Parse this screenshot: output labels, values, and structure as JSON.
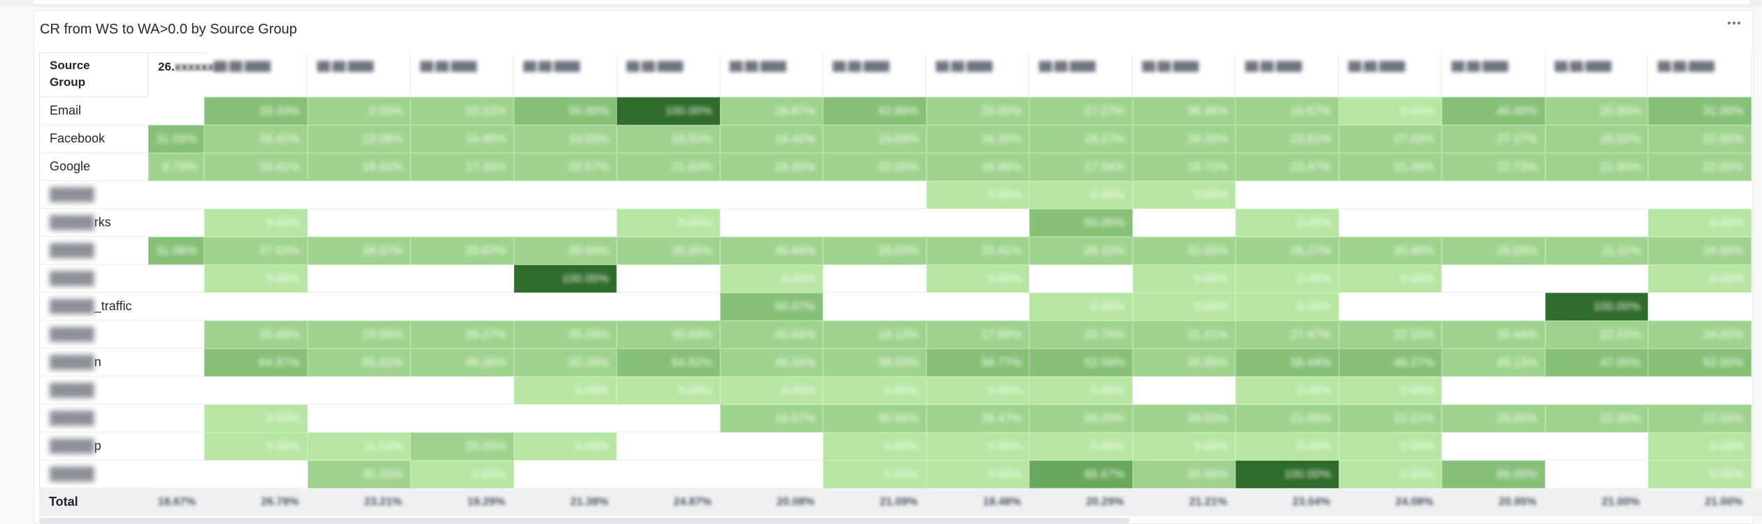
{
  "panel": {
    "title": "CR from WS to WA>0.0 by Source Group",
    "menu_icon": "more-horizontal-icon"
  },
  "table": {
    "row_header": "Source\nGroup",
    "first_date_label": "26.",
    "total_label": "Total",
    "rows": [
      {
        "label": "Email",
        "blur": false
      },
      {
        "label": "Facebook",
        "blur": false
      },
      {
        "label": "Google",
        "blur": false
      },
      {
        "label": "",
        "blur": true
      },
      {
        "label": "rks",
        "blur": true
      },
      {
        "label": "",
        "blur": true
      },
      {
        "label": "",
        "blur": true
      },
      {
        "label": "_traffic",
        "blur": true
      },
      {
        "label": "",
        "blur": true
      },
      {
        "label": "n",
        "blur": true
      },
      {
        "label": "",
        "blur": true
      },
      {
        "label": "",
        "blur": true
      },
      {
        "label": "p",
        "blur": true
      },
      {
        "label": "",
        "blur": true
      }
    ],
    "columns": 16,
    "levels": [
      [
        0,
        3,
        2,
        2,
        3,
        5,
        2,
        3,
        2,
        2,
        2,
        2,
        1,
        3,
        2,
        3
      ],
      [
        3,
        2,
        2,
        2,
        2,
        2,
        2,
        2,
        2,
        2,
        2,
        2,
        2,
        2,
        2,
        2
      ],
      [
        2,
        2,
        2,
        2,
        2,
        2,
        2,
        2,
        2,
        2,
        2,
        2,
        2,
        2,
        2,
        2
      ],
      [
        0,
        0,
        0,
        0,
        0,
        0,
        0,
        0,
        1,
        1,
        1,
        0,
        0,
        0,
        0,
        0
      ],
      [
        0,
        1,
        0,
        0,
        0,
        1,
        0,
        0,
        0,
        3,
        0,
        1,
        0,
        0,
        0,
        1
      ],
      [
        3,
        2,
        2,
        2,
        2,
        2,
        2,
        2,
        2,
        2,
        2,
        2,
        2,
        2,
        2,
        2
      ],
      [
        0,
        1,
        0,
        0,
        5,
        0,
        1,
        0,
        1,
        0,
        1,
        1,
        1,
        0,
        0,
        1
      ],
      [
        0,
        0,
        0,
        0,
        0,
        0,
        3,
        0,
        0,
        1,
        1,
        1,
        0,
        0,
        5,
        0
      ],
      [
        0,
        2,
        2,
        2,
        2,
        2,
        2,
        2,
        2,
        2,
        2,
        2,
        2,
        2,
        2,
        2
      ],
      [
        0,
        3,
        2,
        2,
        2,
        3,
        2,
        2,
        3,
        3,
        2,
        3,
        3,
        2,
        3,
        3
      ],
      [
        0,
        0,
        0,
        0,
        1,
        1,
        1,
        1,
        1,
        1,
        0,
        1,
        1,
        0,
        0,
        0
      ],
      [
        0,
        1,
        0,
        0,
        0,
        0,
        2,
        2,
        2,
        2,
        2,
        2,
        2,
        2,
        2,
        2
      ],
      [
        0,
        1,
        1,
        2,
        1,
        0,
        0,
        1,
        1,
        1,
        1,
        1,
        1,
        0,
        0,
        1
      ],
      [
        0,
        0,
        2,
        1,
        0,
        0,
        0,
        1,
        1,
        4,
        2,
        5,
        1,
        3,
        0,
        1
      ]
    ],
    "values": [
      [
        "",
        "33.33%",
        "0.00%",
        "22.22%",
        "50.00%",
        "100.00%",
        "26.67%",
        "42.86%",
        "25.00%",
        "27.27%",
        "36.36%",
        "16.67%",
        "0.00%",
        "40.00%",
        "25.00%",
        "31.00%"
      ],
      [
        "31.03%",
        "26.42%",
        "23.08%",
        "18.46%",
        "19.59%",
        "18.52%",
        "19.42%",
        "19.69%",
        "16.30%",
        "18.27%",
        "18.33%",
        "23.81%",
        "27.03%",
        "27.17%",
        "28.02%",
        "22.00%"
      ],
      [
        "8.78%",
        "20.81%",
        "18.41%",
        "17.10%",
        "20.57%",
        "21.83%",
        "19.20%",
        "20.00%",
        "16.99%",
        "17.04%",
        "19.72%",
        "23.47%",
        "21.09%",
        "22.73%",
        "21.00%",
        "22.00%"
      ],
      [
        "",
        "",
        "",
        "",
        "",
        "",
        "",
        "",
        "0.00%",
        "0.00%",
        "0.00%",
        "",
        "",
        "",
        "",
        ""
      ],
      [
        "",
        "0.00%",
        "",
        "",
        "",
        "0.00%",
        "",
        "",
        "",
        "50.00%",
        "",
        "0.00%",
        "",
        "",
        "",
        "0.00%"
      ],
      [
        "31.06%",
        "27.63%",
        "29.37%",
        "25.67%",
        "30.04%",
        "30.05%",
        "40.84%",
        "29.03%",
        "25.41%",
        "28.15%",
        "32.05%",
        "26.27%",
        "30.46%",
        "26.03%",
        "11.11%",
        "24.00%"
      ],
      [
        "",
        "0.00%",
        "",
        "",
        "100.00%",
        "",
        "0.00%",
        "",
        "0.00%",
        "",
        "0.00%",
        "0.00%",
        "0.00%",
        "",
        "",
        "0.00%"
      ],
      [
        "",
        "",
        "",
        "",
        "",
        "",
        "66.67%",
        "",
        "",
        "0.00%",
        "0.00%",
        "0.00%",
        "",
        "",
        "100.00%",
        ""
      ],
      [
        "",
        "25.49%",
        "23.00%",
        "29.27%",
        "35.20%",
        "30.68%",
        "40.64%",
        "19.13%",
        "17.65%",
        "15.70%",
        "21.21%",
        "27.47%",
        "22.15%",
        "30.44%",
        "22.22%",
        "24.00%"
      ],
      [
        "",
        "64.87%",
        "55.41%",
        "46.26%",
        "50.29%",
        "64.62%",
        "49.29%",
        "38.03%",
        "58.77%",
        "52.09%",
        "35.55%",
        "56.44%",
        "48.27%",
        "40.13%",
        "47.00%",
        "52.00%"
      ],
      [
        "",
        "",
        "",
        "",
        "0.00%",
        "0.00%",
        "0.00%",
        "0.00%",
        "0.00%",
        "0.00%",
        "",
        "0.00%",
        "0.00%",
        "",
        "",
        ""
      ],
      [
        "",
        "0.00%",
        "",
        "",
        "",
        "",
        "18.57%",
        "30.56%",
        "26.47%",
        "28.29%",
        "29.03%",
        "21.00%",
        "22.22%",
        "20.00%",
        "22.00%",
        "22.00%"
      ],
      [
        "",
        "0.00%",
        "11.54%",
        "25.00%",
        "0.00%",
        "",
        "",
        "0.00%",
        "0.00%",
        "0.00%",
        "0.00%",
        "0.00%",
        "0.00%",
        "",
        "",
        "0.00%"
      ],
      [
        "",
        "",
        "35.33%",
        "0.00%",
        "",
        "",
        "",
        "0.00%",
        "0.00%",
        "66.67%",
        "35.00%",
        "100.00%",
        "0.00%",
        "66.00%",
        "",
        "0.00%"
      ]
    ],
    "totals": [
      "18.67%",
      "26.78%",
      "23.21%",
      "19.29%",
      "21.38%",
      "24.87%",
      "20.08%",
      "21.09%",
      "18.48%",
      "20.29%",
      "21.21%",
      "23.04%",
      "24.08%",
      "20.95%",
      "21.00%",
      "21.00%"
    ],
    "colors": [
      "#ffffff",
      "#b6e6a2",
      "#9fd38d",
      "#86c177",
      "#68a85c",
      "#2f6b2a"
    ]
  }
}
